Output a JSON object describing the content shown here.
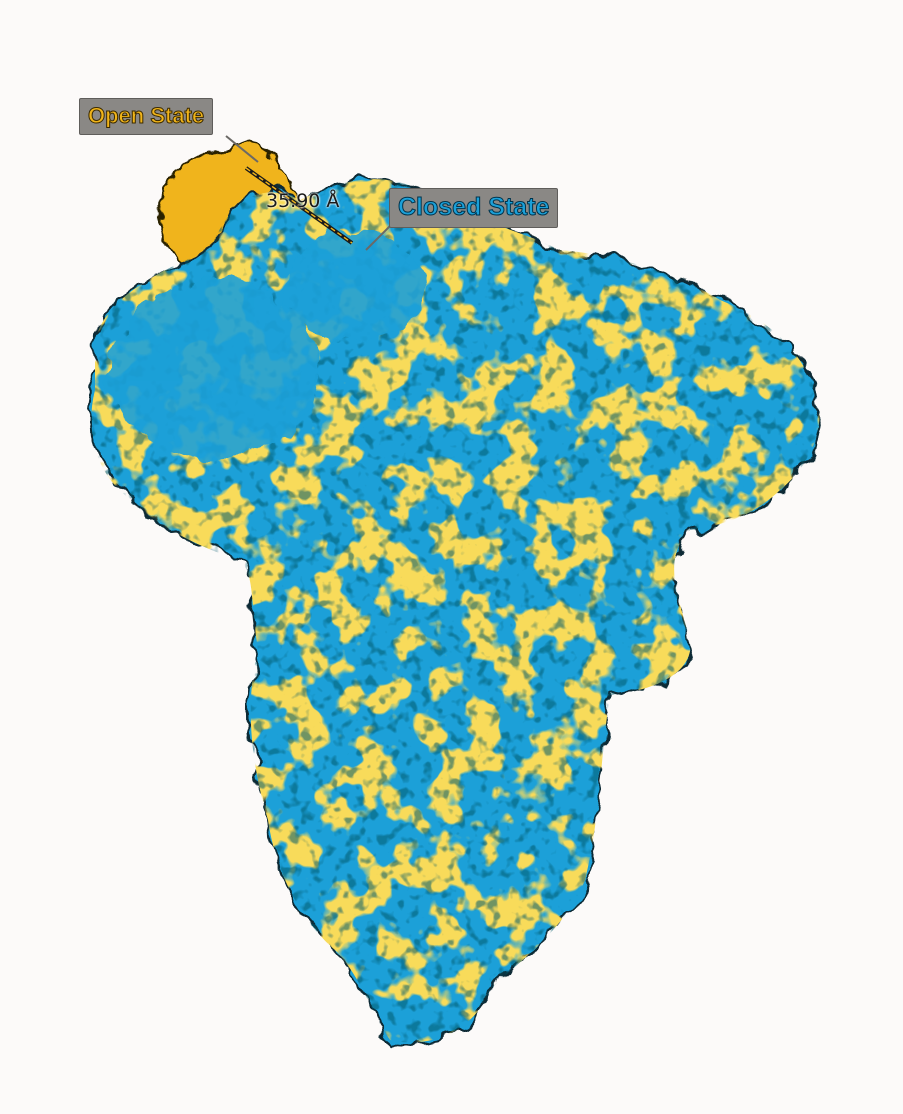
{
  "labels": {
    "open_state": "Open State",
    "closed_state": "Closed State",
    "distance": "35.90 Å"
  },
  "colors": {
    "open_state": "#f0b41a",
    "closed_state": "#1ba0d8",
    "background": "#fcfaf9",
    "label_box": "#8a8885"
  },
  "subject": "protein-surface-superposition"
}
